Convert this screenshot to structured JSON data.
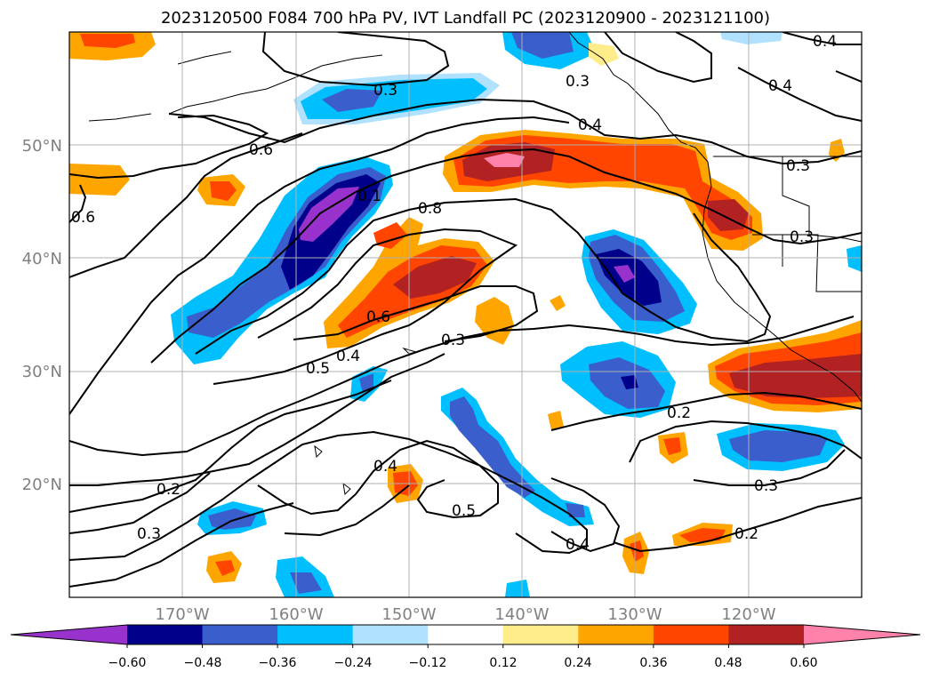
{
  "title": "2023120500 F084 700 hPa PV, IVT Landfall PC (2023120900 - 2023121100)",
  "lat_ticks": [
    "50°N",
    "40°N",
    "30°N",
    "20°N"
  ],
  "lon_ticks": [
    "170°W",
    "160°W",
    "150°W",
    "140°W",
    "130°W",
    "120°W"
  ],
  "colorbar": {
    "tick_labels": [
      "−0.60",
      "−0.48",
      "−0.36",
      "−0.24",
      "−0.12",
      "0.12",
      "0.24",
      "0.36",
      "0.48",
      "0.60"
    ],
    "colors": [
      "#9932cc",
      "#00008b",
      "#3a5fcd",
      "#00bfff",
      "#b0e2ff",
      "#ffffff",
      "#ffec8b",
      "#ffa500",
      "#ff4500",
      "#b22222",
      "#ff82ab"
    ]
  },
  "contour_labels": [
    "0.3",
    "0.3",
    "0.4",
    "0.4",
    "0.4",
    "0.6",
    "0.6",
    "0.1",
    "0.8",
    "0.3",
    "0.6",
    "0.5",
    "0.4",
    "0.3",
    "0.3",
    "0.2",
    "0.2",
    "0.3",
    "0.4",
    "0.5",
    "0.3",
    "0.2",
    "0.4"
  ],
  "colors": {
    "contour": "#000000",
    "grid": "#b0b0b0",
    "axis_text": "#808080"
  }
}
